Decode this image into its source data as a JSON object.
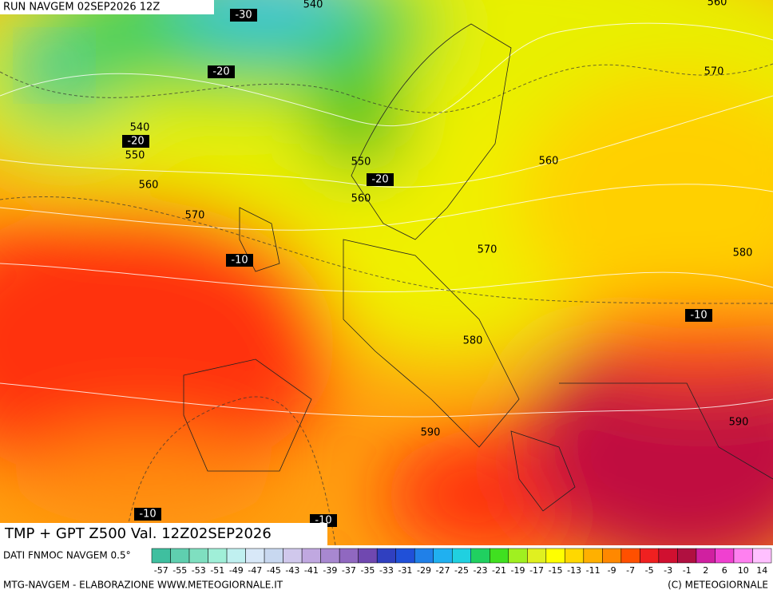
{
  "header": {
    "run": "RUN NAVGEM 02SEP2026 12Z"
  },
  "map": {
    "title": "TMP + GPT Z500 Val. 12Z02SEP2026",
    "labels": [
      "540",
      "-30",
      "560",
      "-20",
      "570",
      "540",
      "-20",
      "550",
      "550",
      "-20",
      "560",
      "560",
      "560",
      "570",
      "-10",
      "570",
      "580",
      "-10",
      "580",
      "590",
      "590",
      "-10",
      "-10"
    ]
  },
  "colorbar": {
    "source": "DATI FNMOC NAVGEM 0.5°",
    "labels": [
      "-57",
      "-55",
      "-53",
      "-51",
      "-49",
      "-47",
      "-45",
      "-43",
      "-41",
      "-39",
      "-37",
      "-35",
      "-33",
      "-31",
      "-29",
      "-27",
      "-25",
      "-23",
      "-21",
      "-19",
      "-17",
      "-15",
      "-13",
      "-11",
      "-9",
      "-7",
      "-5",
      "-3",
      "-1",
      "2",
      "6",
      "10",
      "14"
    ],
    "colors": [
      "#3fbf9f",
      "#5fcfaf",
      "#7fdfc0",
      "#a0efd8",
      "#c0f0f0",
      "#d8e8f8",
      "#c8d8f0",
      "#d0c8ec",
      "#c0a8e0",
      "#a888d0",
      "#9068c0",
      "#7048b0",
      "#3040c0",
      "#2050d8",
      "#2080e8",
      "#20b0f0",
      "#20d0e0",
      "#20d060",
      "#40e020",
      "#a0f020",
      "#e0f020",
      "#ffff00",
      "#ffd800",
      "#ffb000",
      "#ff8800",
      "#ff5000",
      "#f02020",
      "#d01030",
      "#b01040",
      "#d020a0",
      "#f040d0",
      "#ff80f0",
      "#ffc0ff"
    ]
  },
  "footer": {
    "left": "MTG-NAVGEM - ELABORAZIONE WWW.METEOGIORNALE.IT",
    "right": "(C) METEOGIORNALE"
  }
}
